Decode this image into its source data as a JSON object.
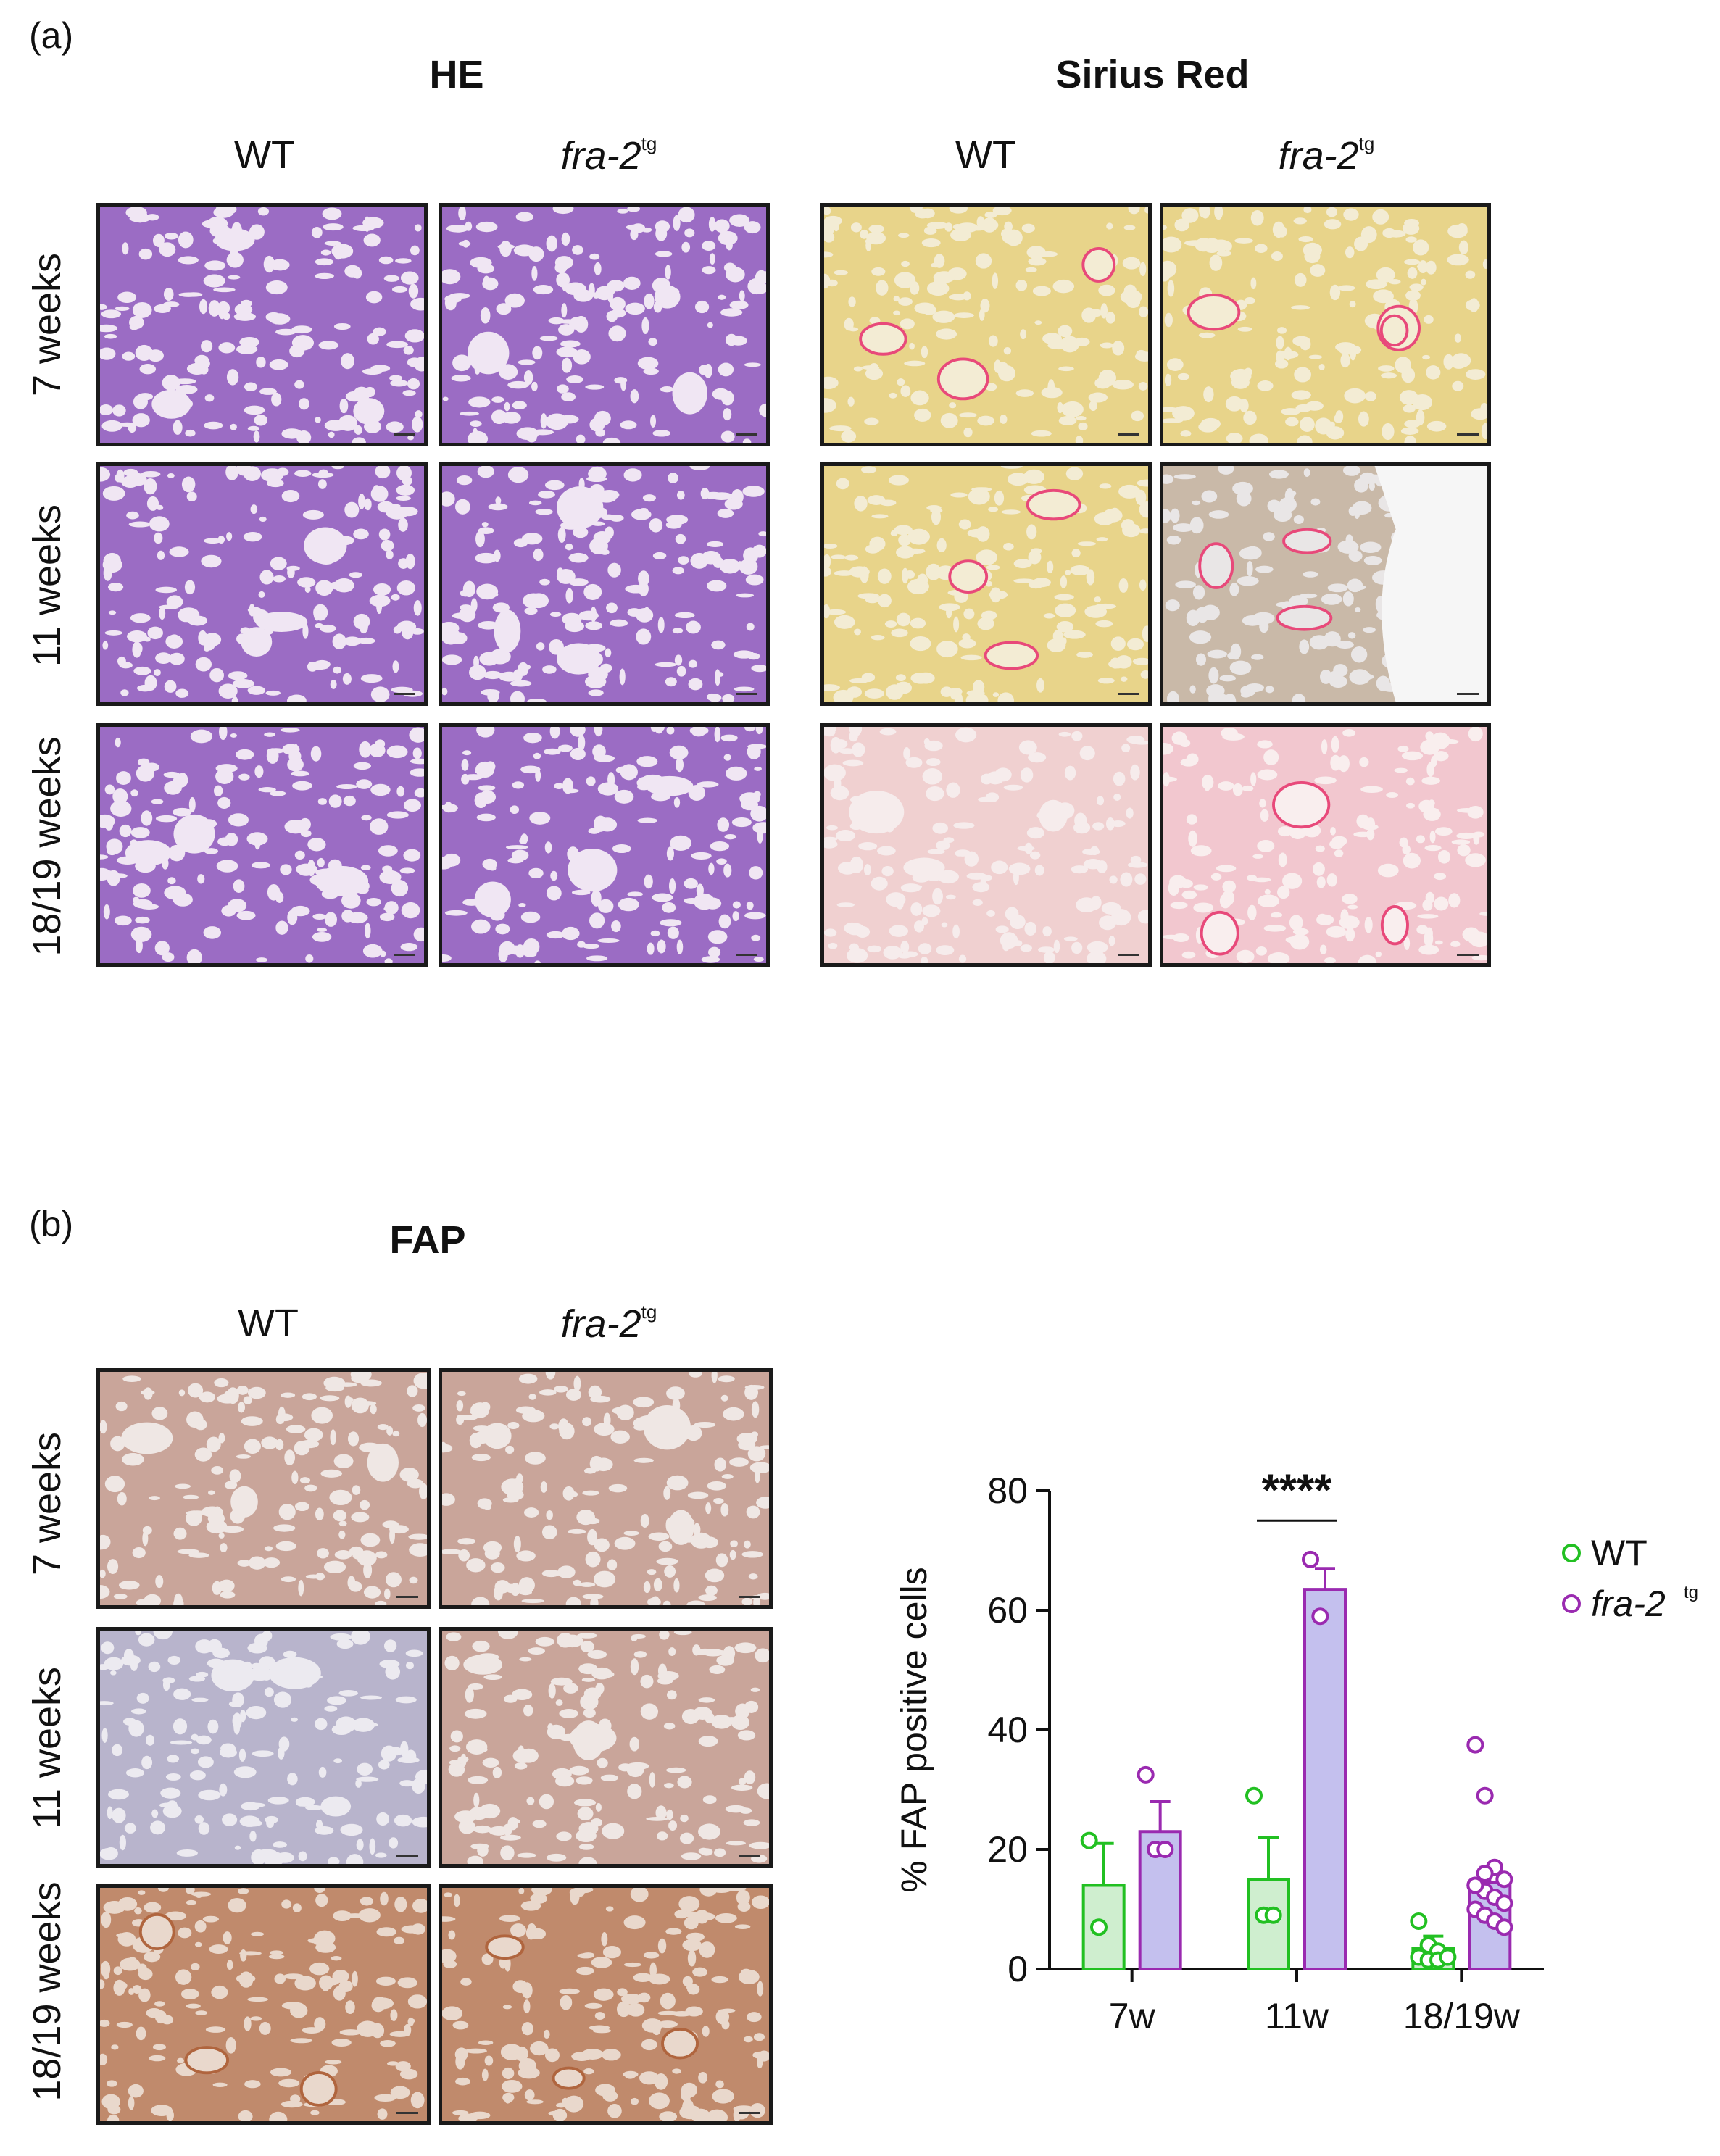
{
  "panel_a": {
    "letter": "(a)",
    "he_title": "HE",
    "sr_title": "Sirius Red",
    "col_wt": "WT",
    "col_tg_main": "fra-2",
    "col_tg_sup": "tg",
    "rows": [
      "7 weeks",
      "11 weeks",
      "18/19 weeks"
    ]
  },
  "panel_b": {
    "letter": "(b)",
    "fap_title": "FAP",
    "col_wt": "WT",
    "col_tg_main": "fra-2",
    "col_tg_sup": "tg",
    "rows": [
      "7 weeks",
      "11 weeks",
      "18/19 weeks"
    ]
  },
  "colors": {
    "he_bg": "#f0e6f3",
    "he_stain": "#9b6cc4",
    "sr_bg": "#f3ecd4",
    "sr_stain": "#e8d48a",
    "sr_red": "#e8497a",
    "fap_bg": "#efe7e4",
    "fap_stain": "#c9a59a",
    "wt": "#22c022",
    "wt_fill": "#cfeecf",
    "tg": "#9a2ab0",
    "tg_fill": "#c4c0ee"
  },
  "chart_data": {
    "type": "bar",
    "ylabel": "% FAP positive cells",
    "ylim": [
      0,
      80
    ],
    "yticks": [
      0,
      20,
      40,
      60,
      80
    ],
    "categories": [
      "7w",
      "11w",
      "18/19w"
    ],
    "series": [
      {
        "name": "WT",
        "values": [
          14,
          15,
          3.5
        ],
        "errors": [
          7,
          7,
          2
        ],
        "points": [
          [
            21.5,
            7
          ],
          [
            29,
            9,
            9
          ],
          [
            8,
            4,
            3,
            2,
            2,
            1.5,
            1.5,
            2
          ]
        ]
      },
      {
        "name": "fra-2tg",
        "values": [
          23,
          63.5,
          14.5
        ],
        "errors": [
          5,
          3.5,
          2.5
        ],
        "points": [
          [
            32.5,
            20,
            20
          ],
          [
            68.5,
            59
          ],
          [
            37.5,
            29,
            17,
            15,
            14,
            13,
            12,
            11,
            10,
            9,
            8,
            7,
            14,
            16
          ]
        ]
      }
    ],
    "legend": {
      "wt": "WT",
      "tg_main": "fra-2",
      "tg_sup": "tg"
    },
    "significance": {
      "label": "****",
      "between": "11w"
    }
  }
}
